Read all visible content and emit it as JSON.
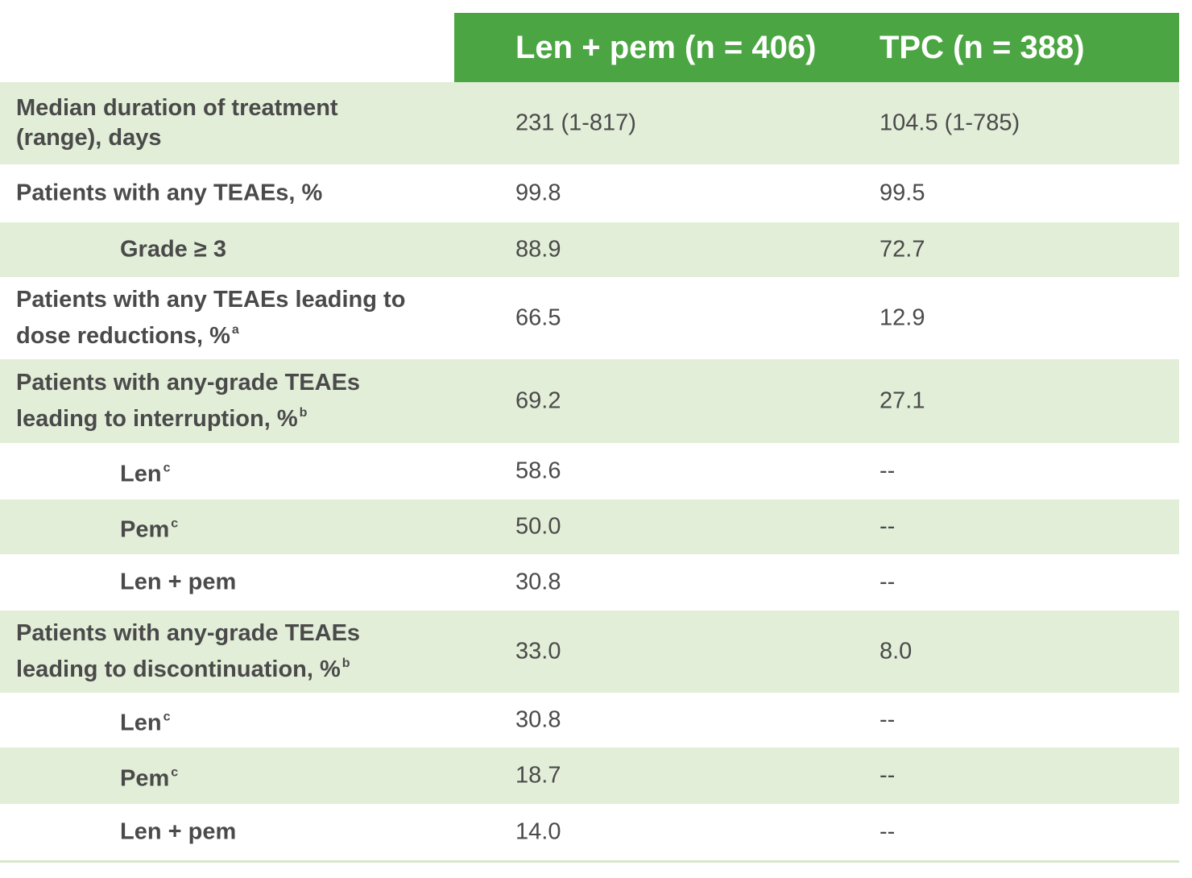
{
  "header": {
    "col1": "Len + pem (n = 406)",
    "col2": "TPC (n = 388)"
  },
  "rows": [
    {
      "label_l1": "Median duration of treatment",
      "label_l2": "(range), days",
      "sup": "",
      "v1": "231 (1-817)",
      "v2": "104.5 (1-785)"
    },
    {
      "label_l1": "Patients with any TEAEs, %",
      "label_l2": "",
      "sup": "",
      "v1": "99.8",
      "v2": "99.5"
    },
    {
      "label_l1": "Grade ≥ 3",
      "label_l2": "",
      "sup": "",
      "v1": "88.9",
      "v2": "72.7"
    },
    {
      "label_l1": "Patients with any TEAEs leading to",
      "label_l2": "dose reductions, %",
      "sup": "a",
      "v1": "66.5",
      "v2": "12.9"
    },
    {
      "label_l1": "Patients with any-grade TEAEs",
      "label_l2": "leading to interruption, %",
      "sup": "b",
      "v1": "69.2",
      "v2": "27.1"
    },
    {
      "label_l1": "Len",
      "label_l2": "",
      "sup": "c",
      "v1": "58.6",
      "v2": "--"
    },
    {
      "label_l1": "Pem",
      "label_l2": "",
      "sup": "c",
      "v1": "50.0",
      "v2": "--"
    },
    {
      "label_l1": "Len + pem",
      "label_l2": "",
      "sup": "",
      "v1": "30.8",
      "v2": "--"
    },
    {
      "label_l1": "Patients with any-grade TEAEs",
      "label_l2": "leading to discontinuation, %",
      "sup": "b",
      "v1": "33.0",
      "v2": "8.0"
    },
    {
      "label_l1": "Len",
      "label_l2": "",
      "sup": "c",
      "v1": "30.8",
      "v2": "--"
    },
    {
      "label_l1": "Pem",
      "label_l2": "",
      "sup": "c",
      "v1": "18.7",
      "v2": "--"
    },
    {
      "label_l1": "Len + pem",
      "label_l2": "",
      "sup": "",
      "v1": "14.0",
      "v2": "--"
    }
  ],
  "colors": {
    "header_bg": "#4aa542",
    "row_shade": "#e2eed8",
    "text": "#4a4a4a"
  }
}
